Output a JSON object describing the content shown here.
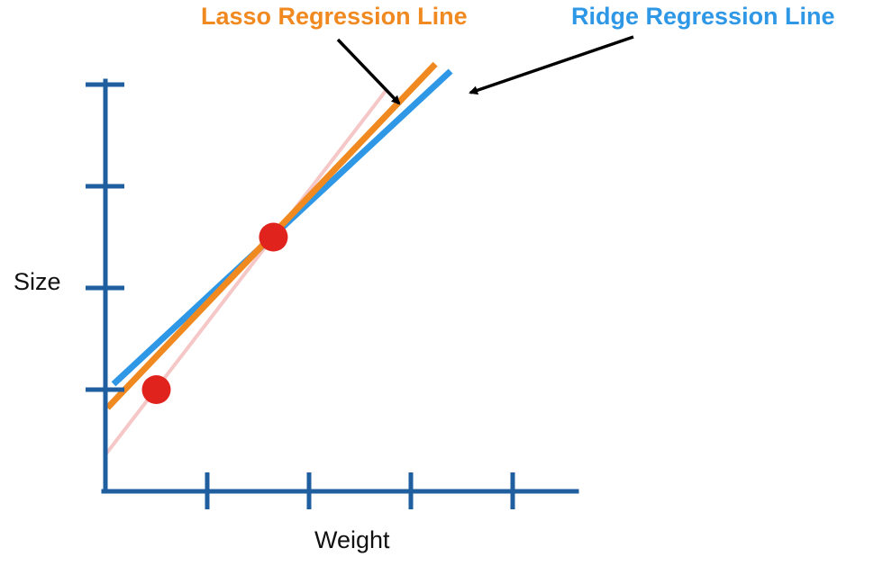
{
  "labels": {
    "lasso": "Lasso Regression Line",
    "ridge": "Ridge Regression Line",
    "x_axis": "Weight",
    "y_axis": "Size"
  },
  "colors": {
    "axis": "#1f5fa0",
    "lasso": "#f0891f",
    "ridge": "#2e97e6",
    "data_point": "#e0231c",
    "original_line": "#f6c7c7",
    "arrow": "#000000"
  },
  "chart_data": {
    "type": "scatter",
    "points": [
      {
        "x": 0.5,
        "y": 1.0
      },
      {
        "x": 1.65,
        "y": 2.5
      }
    ],
    "lines": [
      {
        "name": "Lasso Regression Line",
        "intercept": 0.8,
        "slope": 1.05
      },
      {
        "name": "Ridge Regression Line",
        "intercept": 0.98,
        "slope": 0.93
      },
      {
        "intercept": 0.36,
        "slope": 1.3
      }
    ],
    "xlim": [
      0,
      4.6
    ],
    "ylim": [
      0,
      4
    ],
    "x_ticks": [
      1,
      2,
      3,
      4
    ],
    "y_ticks": [
      1,
      2,
      3,
      4
    ]
  }
}
